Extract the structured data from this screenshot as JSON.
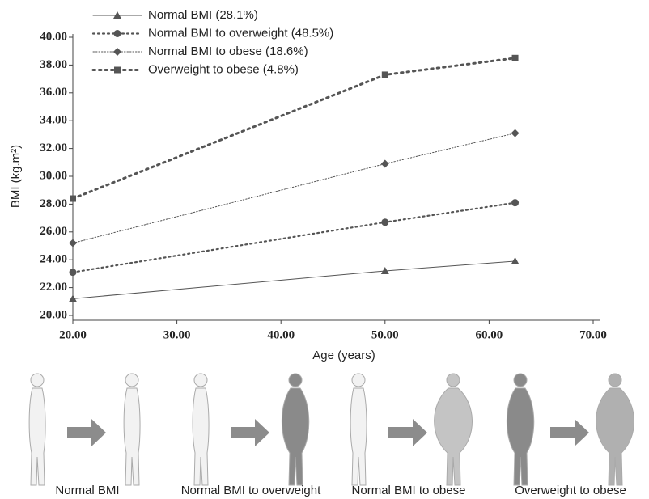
{
  "chart_data": {
    "type": "line",
    "x_label": "Age (years)",
    "y_label": "BMI (kg.m²)",
    "x": [
      20,
      50,
      62.5
    ],
    "series": [
      {
        "name": "Normal BMI (28.1%)",
        "color": "#555555",
        "marker": "triangle",
        "dash": "solid",
        "values": [
          21.2,
          23.2,
          23.9
        ]
      },
      {
        "name": "Normal BMI to overweight (48.5%)",
        "color": "#555555",
        "marker": "circle",
        "dash": "dotted",
        "values": [
          23.1,
          26.7,
          28.1
        ]
      },
      {
        "name": "Normal BMI to obese (18.6%)",
        "color": "#555555",
        "marker": "diamond",
        "dash": "fine",
        "values": [
          25.2,
          30.9,
          33.1
        ]
      },
      {
        "name": "Overweight to obese (4.8%)",
        "color": "#555555",
        "marker": "square",
        "dash": "heavy",
        "values": [
          28.4,
          37.3,
          38.5
        ]
      }
    ],
    "xlim": [
      20,
      70
    ],
    "xticks": [
      {
        "value": 20,
        "label": "20.00"
      },
      {
        "value": 30,
        "label": "30.00"
      },
      {
        "value": 40,
        "label": "40.00"
      },
      {
        "value": 50,
        "label": "50.00"
      },
      {
        "value": 60,
        "label": "60.00"
      },
      {
        "value": 70,
        "label": "70.00"
      }
    ],
    "ylim": [
      20,
      40
    ],
    "yticks": [
      {
        "value": 20,
        "label": "20.00"
      },
      {
        "value": 22,
        "label": "22.00"
      },
      {
        "value": 24,
        "label": "24.00"
      },
      {
        "value": 26,
        "label": "26.00"
      },
      {
        "value": 28,
        "label": "28.00"
      },
      {
        "value": 30,
        "label": "30.00"
      },
      {
        "value": 32,
        "label": "32.00"
      },
      {
        "value": 34,
        "label": "34.00"
      },
      {
        "value": 36,
        "label": "36.00"
      },
      {
        "value": 38,
        "label": "38.00"
      },
      {
        "value": 40,
        "label": "40.00"
      }
    ]
  },
  "panels": [
    "Normal BMI",
    "Normal BMI to overweight",
    "Normal BMI to obese",
    "Overweight to obese"
  ]
}
